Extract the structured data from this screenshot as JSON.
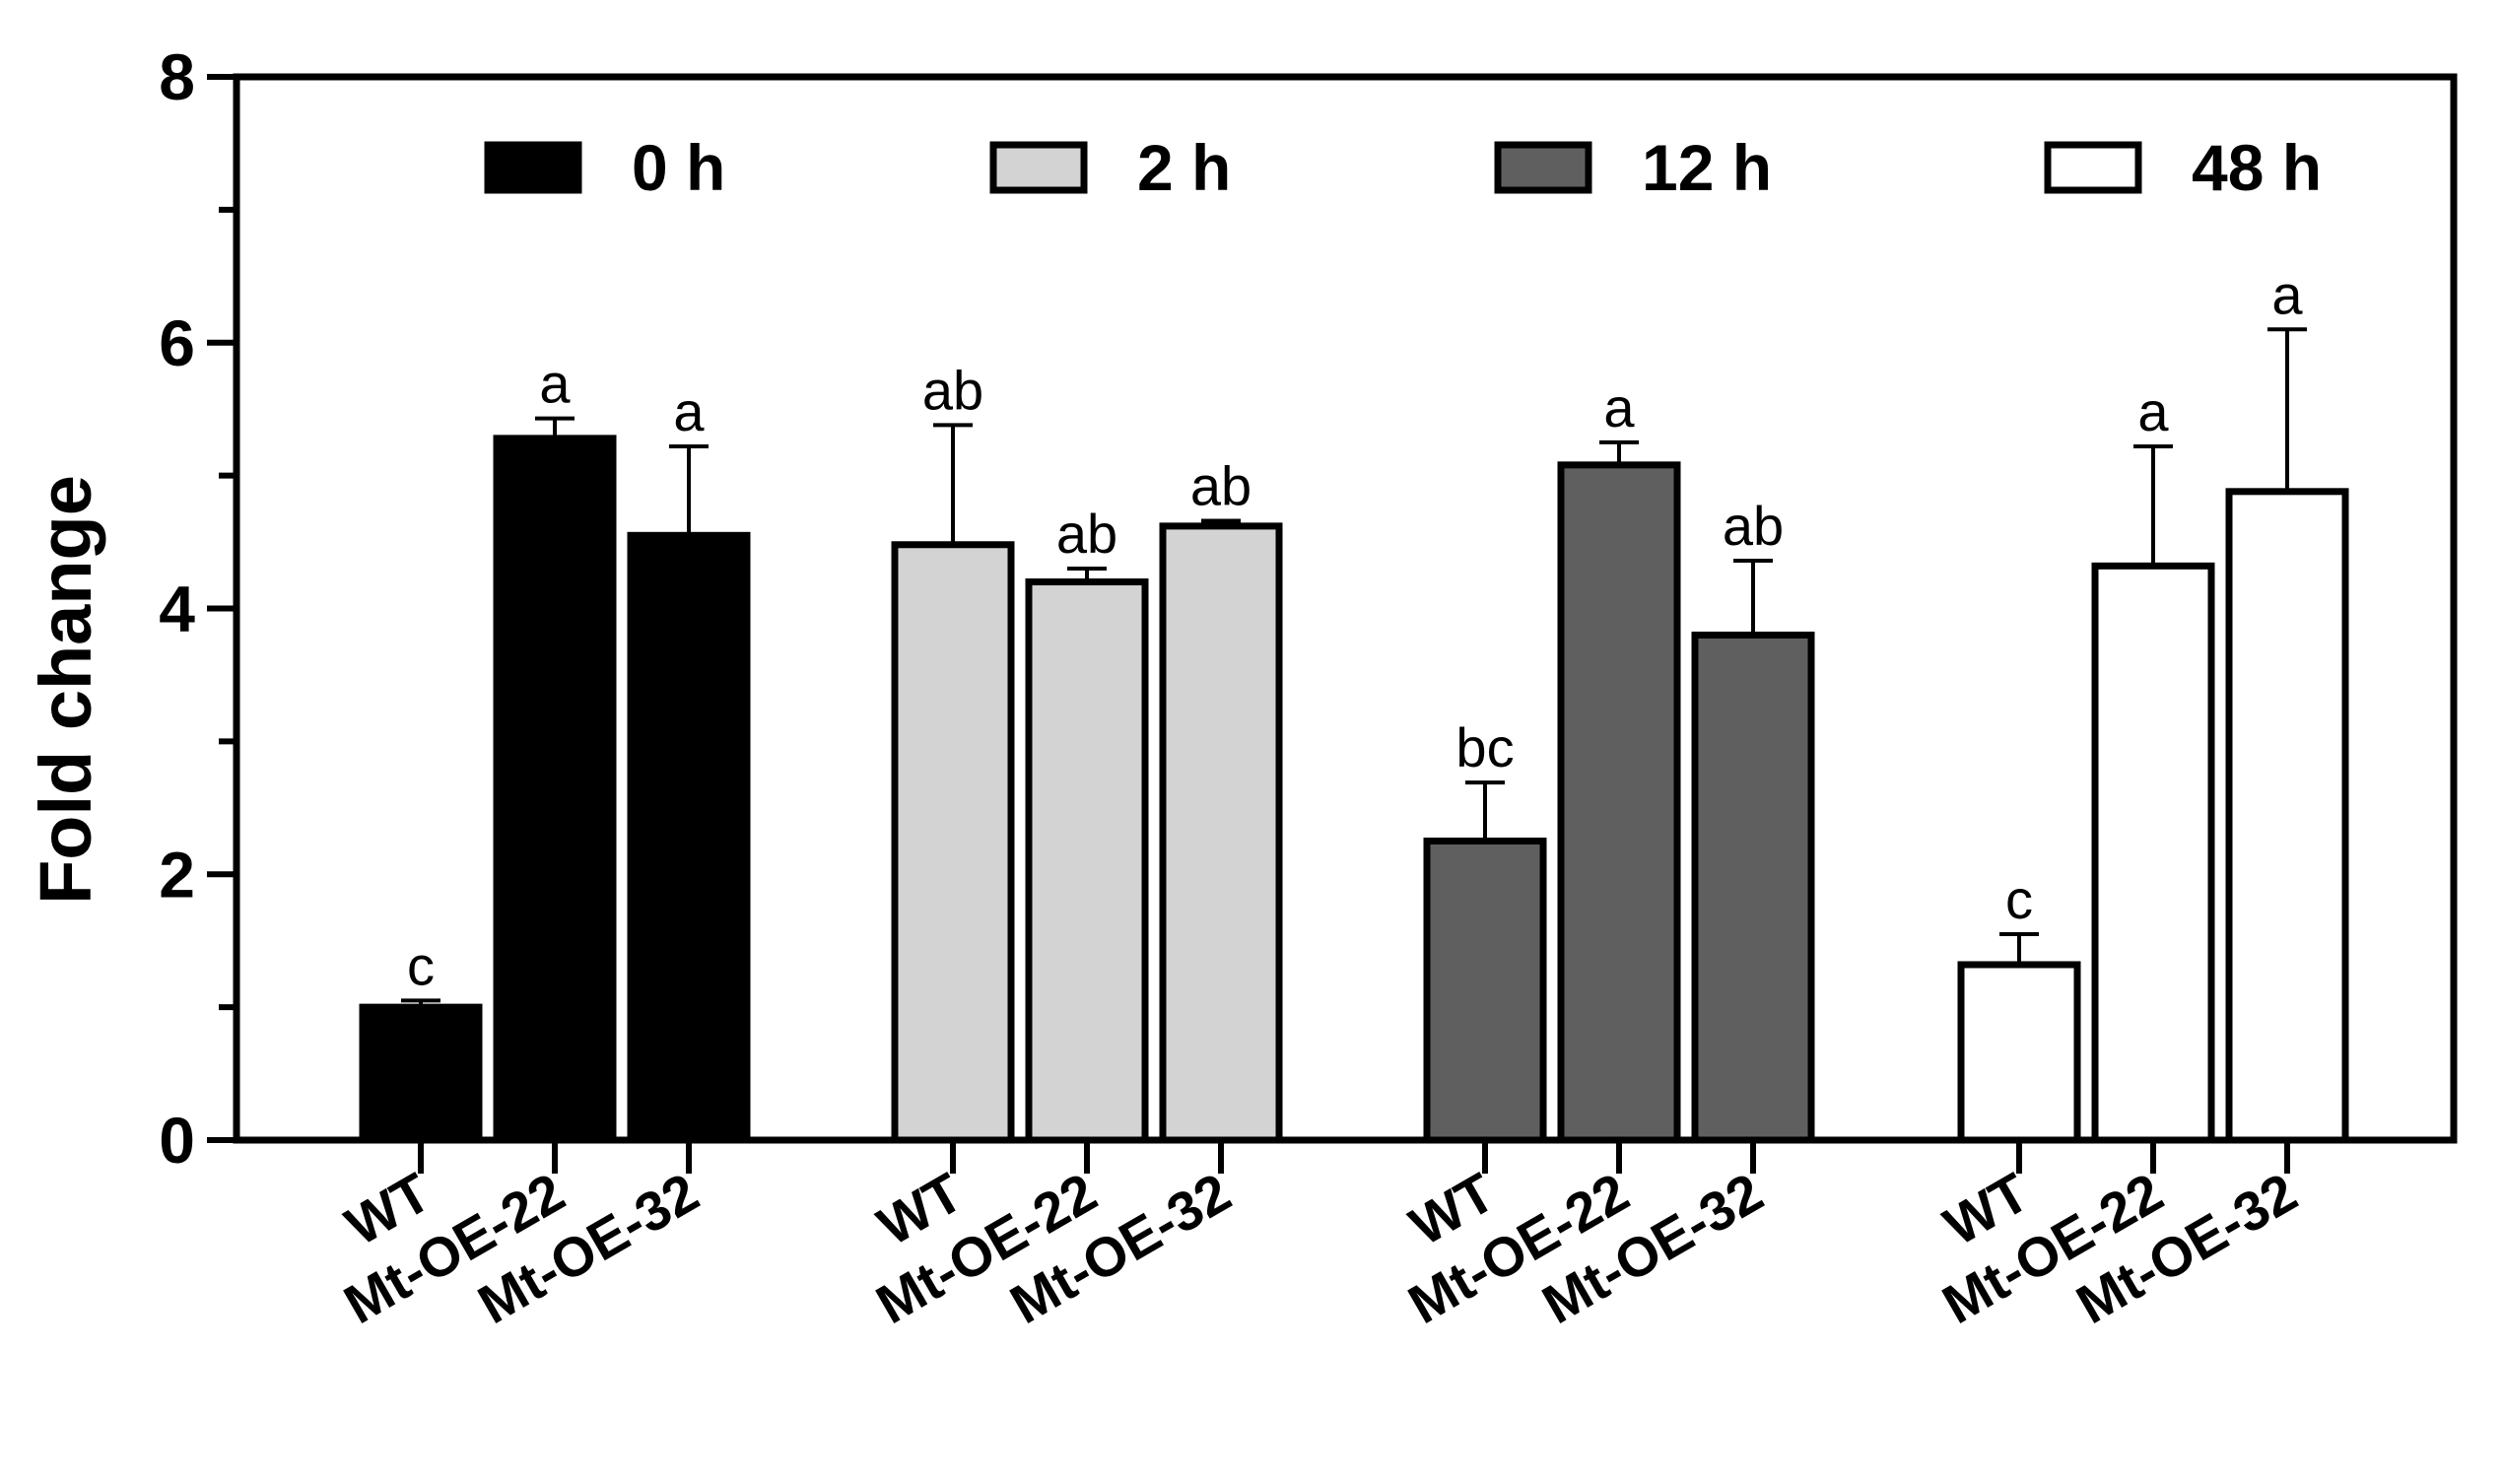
{
  "chart_data": {
    "type": "bar",
    "title": "",
    "xlabel": "",
    "ylabel": "Fold change",
    "ylim": [
      0,
      8
    ],
    "yticks": [
      0,
      2,
      4,
      6,
      8
    ],
    "categories": [
      "WT",
      "Mt-OE-22",
      "Mt-OE-32"
    ],
    "grid": false,
    "legend_position": "top",
    "series": [
      {
        "name": "0 h",
        "color": "#000000",
        "values": [
          1.0,
          5.28,
          4.55
        ],
        "errors": [
          0.05,
          0.15,
          0.67
        ],
        "letters": [
          "c",
          "a",
          "a"
        ]
      },
      {
        "name": "2 h",
        "color": "#d3d3d3",
        "values": [
          4.48,
          4.2,
          4.62
        ],
        "errors": [
          0.9,
          0.1,
          0.04
        ],
        "letters": [
          "ab",
          "ab",
          "ab"
        ]
      },
      {
        "name": "12 h",
        "color": "#5f5f5f",
        "values": [
          2.25,
          5.08,
          3.8
        ],
        "errors": [
          0.44,
          0.17,
          0.56
        ],
        "letters": [
          "bc",
          "a",
          "ab"
        ]
      },
      {
        "name": "48 h",
        "color": "#ffffff",
        "values": [
          1.32,
          4.32,
          4.88
        ],
        "errors": [
          0.23,
          0.9,
          1.22
        ],
        "letters": [
          "c",
          "a",
          "a"
        ]
      }
    ]
  }
}
